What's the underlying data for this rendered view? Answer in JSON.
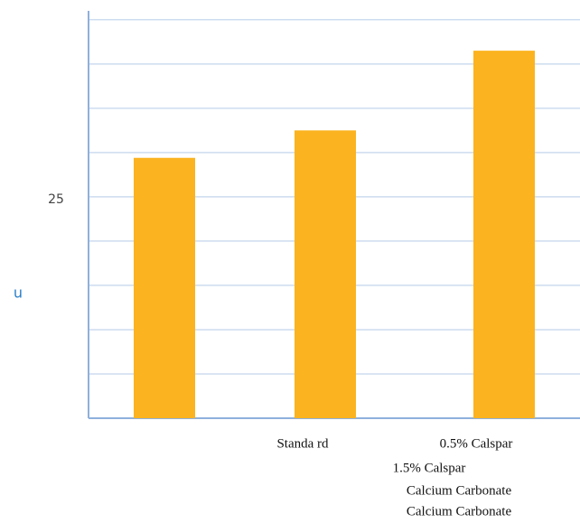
{
  "chart_data": {
    "type": "bar",
    "y_label": "u",
    "categories": [
      null,
      "Standa rd",
      "0.5% Calspar"
    ],
    "values": [
      29.4,
      32.5,
      41.5
    ],
    "color": "#fbb31f",
    "ylim": [
      0,
      46
    ],
    "yticks": [
      25
    ],
    "minor_yticks": [
      5,
      10,
      15,
      20,
      25,
      30,
      35,
      40,
      45
    ],
    "grid": true,
    "annotations": [
      "1.5% Calspar",
      "Calcium Carbonate",
      "Calcium Carbonate"
    ]
  }
}
